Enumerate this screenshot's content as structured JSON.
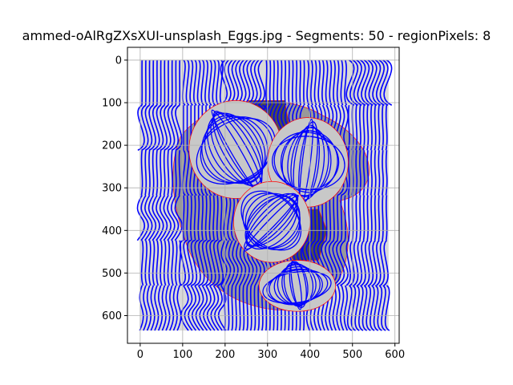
{
  "chart_data": {
    "type": "heatmap",
    "title": "ammed-oAlRgZXsXUI-unsplash_Eggs.jpg - Segments: 50 - regionPixels: 8",
    "xlabel": "",
    "ylabel": "",
    "xlim": [
      -30,
      610
    ],
    "ylim": [
      665,
      -30
    ],
    "y_inverted": true,
    "grid": true,
    "xticks": [
      0,
      100,
      200,
      300,
      400,
      500,
      600
    ],
    "yticks": [
      0,
      100,
      200,
      300,
      400,
      500,
      600
    ],
    "image_extent": {
      "x": [
        0,
        585
      ],
      "y": [
        0,
        635
      ]
    },
    "grid_segments": {
      "cols": 6,
      "rows": 6
    },
    "regions": [
      {
        "kind": "egg",
        "center": [
          225,
          210
        ],
        "radius": [
          110,
          115
        ]
      },
      {
        "kind": "egg",
        "center": [
          395,
          240
        ],
        "radius": [
          95,
          105
        ]
      },
      {
        "kind": "egg",
        "center": [
          310,
          380
        ],
        "radius": [
          90,
          95
        ]
      },
      {
        "kind": "egg",
        "center": [
          370,
          530
        ],
        "radius": [
          90,
          60
        ]
      },
      {
        "kind": "dark",
        "polygon": [
          [
            255,
            95
          ],
          [
            340,
            95
          ],
          [
            350,
            150
          ],
          [
            325,
            205
          ],
          [
            300,
            250
          ],
          [
            260,
            200
          ]
        ]
      },
      {
        "kind": "dark",
        "polygon": [
          [
            330,
            355
          ],
          [
            420,
            350
          ],
          [
            440,
            400
          ],
          [
            420,
            470
          ],
          [
            360,
            470
          ],
          [
            340,
            420
          ]
        ]
      }
    ],
    "colors": {
      "flow_lines": "#0000ff",
      "segment_boundaries": "#ff0000",
      "background_light": "#d9d9d9",
      "background_mid": "#999999",
      "background_dark": "#4d4d4d",
      "grid": "#b0b0b0"
    }
  }
}
